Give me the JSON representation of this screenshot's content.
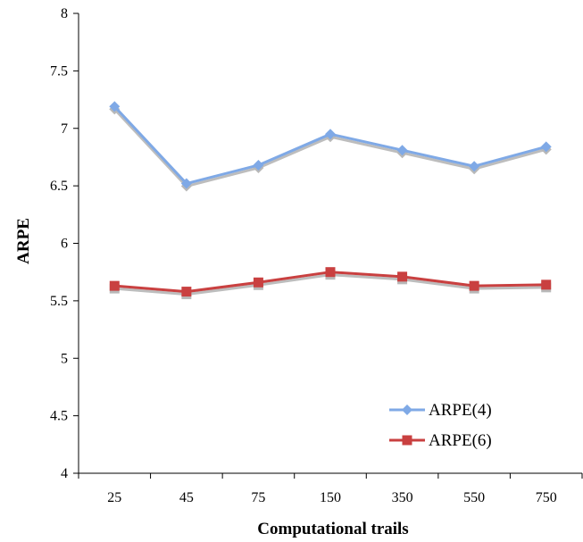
{
  "chart_data": {
    "type": "line",
    "title": "",
    "xlabel": "Computational trails",
    "ylabel": "ARPE",
    "categories": [
      "25",
      "45",
      "75",
      "150",
      "350",
      "550",
      "750"
    ],
    "ylim": [
      4,
      8
    ],
    "yticks": [
      "4",
      "4.5",
      "5",
      "5.5",
      "6",
      "6.5",
      "7",
      "7.5",
      "8"
    ],
    "grid": false,
    "legend_position": "bottom-right",
    "series": [
      {
        "name": "ARPE(4)",
        "color": "#7fa9e6",
        "marker": "diamond",
        "values": [
          7.19,
          6.52,
          6.68,
          6.95,
          6.81,
          6.67,
          6.84
        ]
      },
      {
        "name": "ARPE(6)",
        "color": "#c94040",
        "marker": "square",
        "values": [
          5.63,
          5.58,
          5.66,
          5.75,
          5.71,
          5.63,
          5.64
        ]
      }
    ]
  }
}
